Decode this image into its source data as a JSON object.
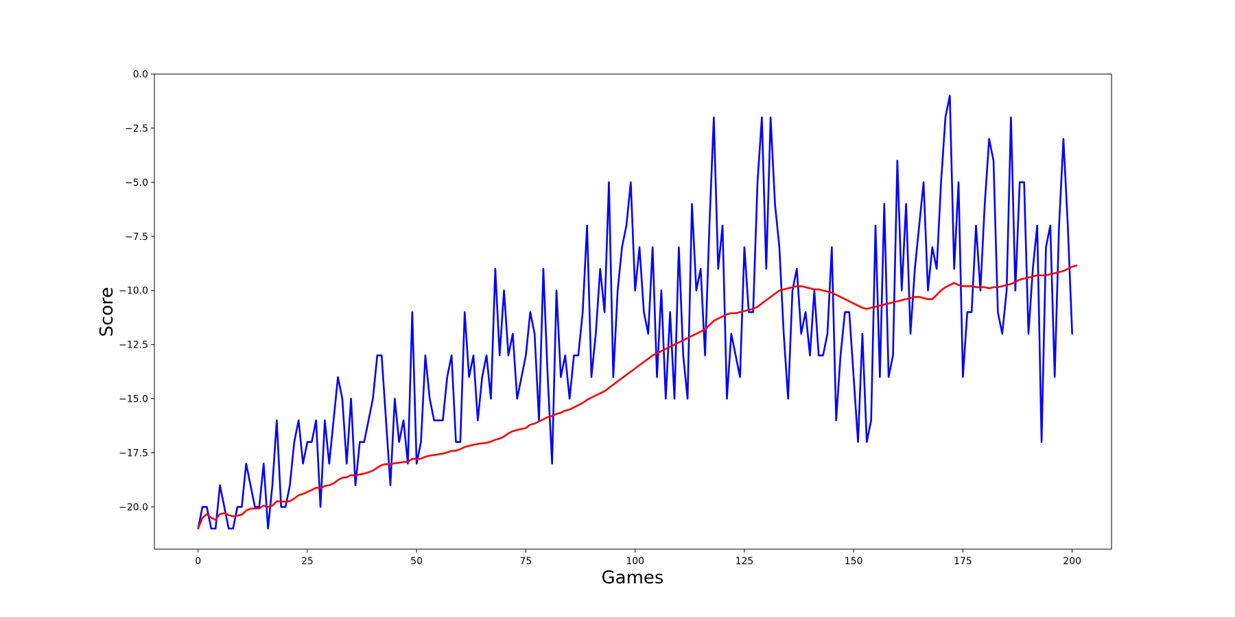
{
  "chart_data": {
    "type": "line",
    "title": "",
    "xlabel": "Games",
    "ylabel": "Score",
    "xlim": [
      -10,
      209
    ],
    "ylim": [
      -21.95,
      0
    ],
    "xticks": [
      0,
      25,
      50,
      75,
      100,
      125,
      150,
      175,
      200
    ],
    "xtick_labels": [
      "0",
      "25",
      "50",
      "75",
      "100",
      "125",
      "150",
      "175",
      "200"
    ],
    "yticks": [
      0,
      -2.5,
      -5,
      -7.5,
      -10,
      -12.5,
      -15,
      -17.5,
      -20
    ],
    "ytick_labels": [
      "0.0",
      "−2.5",
      "−5.0",
      "−7.5",
      "−10.0",
      "−12.5",
      "−15.0",
      "−17.5",
      "−20.0"
    ],
    "grid": false,
    "legend": false,
    "series": [
      {
        "color": "#0000ff",
        "values": [
          -21,
          -20,
          -20,
          -21,
          -21,
          -19,
          -20,
          -21,
          -21,
          -20,
          -20,
          -18,
          -19,
          -20,
          -20,
          -18,
          -21,
          -19,
          -16,
          -20,
          -20,
          -19,
          -17,
          -16,
          -18,
          -17,
          -17,
          -16,
          -20,
          -16,
          -18,
          -16,
          -14,
          -15,
          -18,
          -15,
          -19,
          -17,
          -17,
          -16,
          -15,
          -13,
          -13,
          -16,
          -19,
          -15,
          -17,
          -16,
          -18,
          -11,
          -18,
          -17,
          -13,
          -15,
          -16,
          -16,
          -16,
          -14,
          -13,
          -17,
          -17,
          -11,
          -14,
          -13,
          -16,
          -14,
          -13,
          -15,
          -9,
          -13,
          -10,
          -13,
          -12,
          -15,
          -14,
          -13,
          -11,
          -12,
          -16,
          -9,
          -14,
          -18,
          -10,
          -14,
          -13,
          -15,
          -13,
          -13,
          -11,
          -7,
          -14,
          -12,
          -9,
          -11,
          -5,
          -14,
          -10,
          -8,
          -7,
          -5,
          -10,
          -8,
          -11,
          -12,
          -8,
          -14,
          -10,
          -15,
          -11,
          -15,
          -8,
          -13,
          -15,
          -6,
          -10,
          -9,
          -13,
          -7,
          -2,
          -9,
          -7,
          -15,
          -12,
          -13,
          -14,
          -8,
          -11,
          -11,
          -5,
          -2,
          -9,
          -2,
          -6,
          -8,
          -12,
          -15,
          -10,
          -9,
          -12,
          -11,
          -13,
          -10,
          -13,
          -13,
          -12,
          -8,
          -16,
          -13,
          -11,
          -11,
          -14,
          -17,
          -12,
          -17,
          -16,
          -7,
          -14,
          -6,
          -14,
          -13,
          -4,
          -10,
          -6,
          -12,
          -9,
          -7,
          -5,
          -10,
          -8,
          -9,
          -5,
          -2,
          -1,
          -9,
          -5,
          -14,
          -11,
          -11,
          -7,
          -10,
          -6,
          -3,
          -4,
          -11,
          -12,
          -10,
          -2,
          -10,
          -5,
          -5,
          -12,
          -9,
          -7,
          -17,
          -8,
          -7,
          -14,
          -7,
          -3,
          -7,
          -12
        ]
      },
      {
        "color": "#ff0000",
        "values": [
          -21,
          -20.5,
          -20.33,
          -20.5,
          -20.6,
          -20.33,
          -20.29,
          -20.38,
          -20.44,
          -20.4,
          -20.36,
          -20.17,
          -20.08,
          -20.07,
          -20.07,
          -19.94,
          -20,
          -19.94,
          -19.74,
          -19.75,
          -19.76,
          -19.73,
          -19.61,
          -19.46,
          -19.4,
          -19.31,
          -19.22,
          -19.11,
          -19.14,
          -19.03,
          -19,
          -18.91,
          -18.76,
          -18.65,
          -18.63,
          -18.53,
          -18.54,
          -18.5,
          -18.46,
          -18.4,
          -18.32,
          -18.19,
          -18.07,
          -18.02,
          -18.04,
          -17.98,
          -17.96,
          -17.92,
          -17.92,
          -17.78,
          -17.79,
          -17.77,
          -17.68,
          -17.63,
          -17.6,
          -17.57,
          -17.54,
          -17.48,
          -17.41,
          -17.4,
          -17.33,
          -17.23,
          -17.18,
          -17.13,
          -17.09,
          -17.06,
          -17.04,
          -16.98,
          -16.9,
          -16.84,
          -16.75,
          -16.6,
          -16.5,
          -16.45,
          -16.4,
          -16.35,
          -16.2,
          -16.15,
          -16.05,
          -15.95,
          -15.85,
          -15.8,
          -15.7,
          -15.65,
          -15.55,
          -15.5,
          -15.4,
          -15.3,
          -15.2,
          -15.05,
          -14.95,
          -14.85,
          -14.75,
          -14.65,
          -14.5,
          -14.35,
          -14.2,
          -14.05,
          -13.9,
          -13.75,
          -13.6,
          -13.45,
          -13.3,
          -13.15,
          -13,
          -12.9,
          -12.8,
          -12.7,
          -12.6,
          -12.5,
          -12.4,
          -12.3,
          -12.2,
          -12.1,
          -12,
          -11.9,
          -11.8,
          -11.6,
          -11.4,
          -11.3,
          -11.2,
          -11.1,
          -11.05,
          -11.05,
          -11,
          -10.95,
          -10.9,
          -10.85,
          -10.75,
          -10.6,
          -10.45,
          -10.3,
          -10.15,
          -10,
          -9.95,
          -9.9,
          -9.85,
          -9.8,
          -9.8,
          -9.85,
          -9.9,
          -9.95,
          -9.95,
          -10,
          -10.05,
          -10.1,
          -10.2,
          -10.3,
          -10.4,
          -10.5,
          -10.6,
          -10.7,
          -10.8,
          -10.85,
          -10.8,
          -10.75,
          -10.7,
          -10.65,
          -10.6,
          -10.55,
          -10.5,
          -10.45,
          -10.4,
          -10.35,
          -10.3,
          -10.3,
          -10.35,
          -10.4,
          -10.4,
          -10.2,
          -10,
          -9.85,
          -9.75,
          -9.65,
          -9.75,
          -9.8,
          -9.8,
          -9.8,
          -9.85,
          -9.85,
          -9.85,
          -9.9,
          -9.85,
          -9.85,
          -9.8,
          -9.75,
          -9.7,
          -9.6,
          -9.5,
          -9.45,
          -9.4,
          -9.35,
          -9.3,
          -9.3,
          -9.3,
          -9.25,
          -9.2,
          -9.15,
          -9.1,
          -9,
          -8.9,
          -8.85
        ]
      }
    ]
  }
}
